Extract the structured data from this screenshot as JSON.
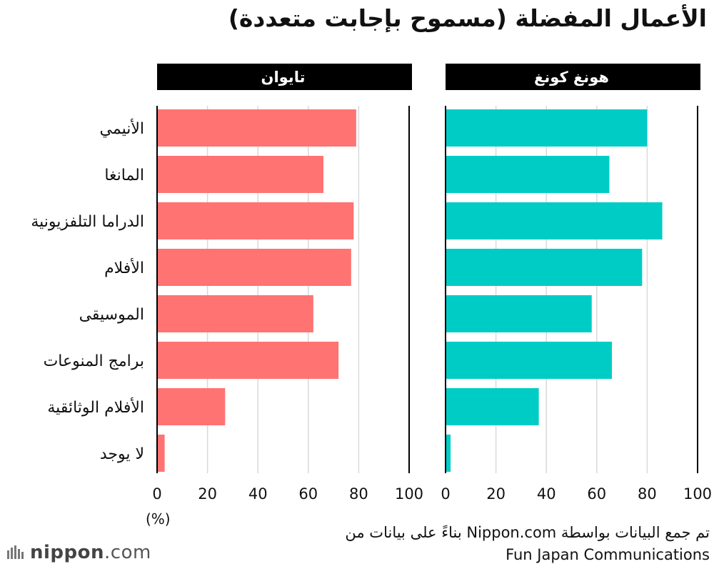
{
  "title": "الأعمال المفضلة (مسموح بإجابت متعددة)",
  "unit_label": "(%)",
  "source_line1": "تم جمع البيانات بواسطة Nippon.com بناءً على بيانات من",
  "source_line2": "Fun Japan Communications",
  "logo": {
    "name": "nippon",
    "suffix": ".com"
  },
  "colors": {
    "taiwan": "#ff7373",
    "hongkong": "#00ccc6",
    "panel_header": "#000000",
    "grid": "#d9d9d9"
  },
  "chart_data": [
    {
      "type": "bar",
      "orientation": "horizontal",
      "panel_title": "تايوان",
      "categories": [
        "الأنيمي",
        "المانغا",
        "الدراما التلفزيونية",
        "الأفلام",
        "الموسيقى",
        "برامج المنوعات",
        "الأفلام الوثائقية",
        "لا يوجد"
      ],
      "values": [
        79,
        66,
        78,
        77,
        62,
        72,
        27,
        3
      ],
      "xlim": [
        0,
        100
      ],
      "xticks": [
        "0",
        "20",
        "40",
        "60",
        "80",
        "100"
      ],
      "grid": true
    },
    {
      "type": "bar",
      "orientation": "horizontal",
      "panel_title": "هونغ كونغ",
      "categories": [
        "الأنيمي",
        "المانغا",
        "الدراما التلفزيونية",
        "الأفلام",
        "الموسيقى",
        "برامج المنوعات",
        "الأفلام الوثائقية",
        "لا يوجد"
      ],
      "values": [
        80,
        65,
        86,
        78,
        58,
        66,
        37,
        2
      ],
      "xlim": [
        0,
        100
      ],
      "xticks": [
        "0",
        "20",
        "40",
        "60",
        "80",
        "100"
      ],
      "grid": true
    }
  ]
}
